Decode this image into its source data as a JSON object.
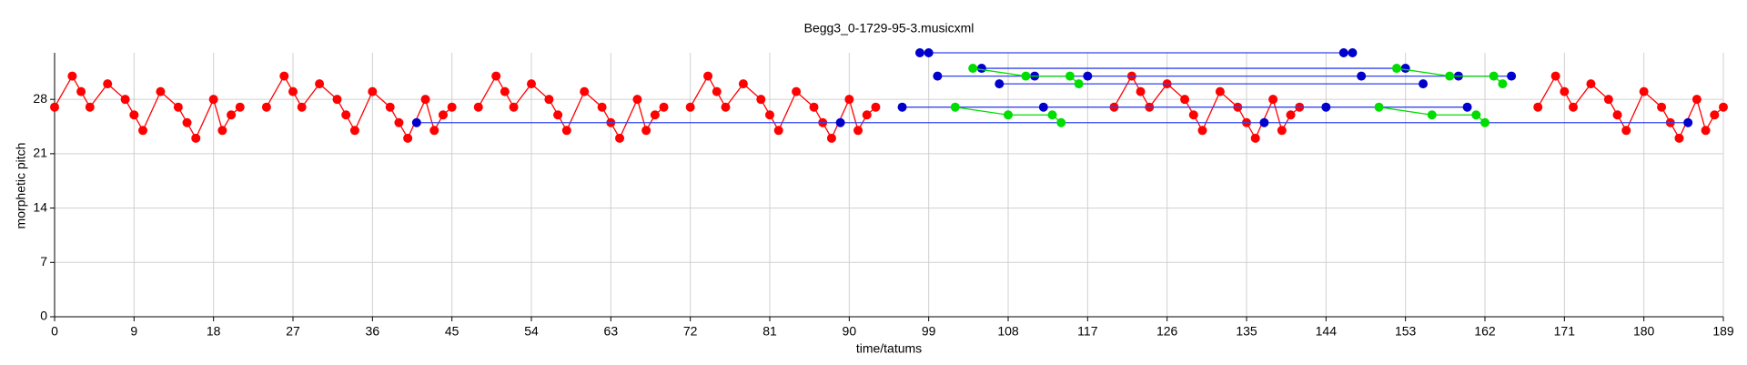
{
  "chart_data": {
    "type": "line",
    "title": "Begg3_0-1729-95-3.musicxml",
    "x_label": "time/tatums",
    "y_label": "morphetic pitch",
    "xlim": [
      0,
      189
    ],
    "ylim": [
      0,
      34
    ],
    "xticks": [
      0,
      9,
      18,
      27,
      36,
      45,
      54,
      63,
      72,
      81,
      90,
      99,
      108,
      117,
      126,
      135,
      144,
      153,
      162,
      171,
      180,
      189
    ],
    "yticks": [
      0,
      7,
      14,
      21,
      28
    ],
    "grid": true,
    "series": [
      {
        "color": "#ff0000",
        "x": [
          0,
          2,
          3,
          4,
          6,
          8,
          9,
          10,
          12,
          14,
          15,
          16,
          18,
          19,
          20,
          21,
          22,
          24,
          26,
          27,
          28,
          30,
          32,
          33,
          34,
          36,
          38,
          39,
          40,
          42,
          43,
          44,
          45,
          46,
          48,
          50,
          51,
          52,
          54,
          56,
          57,
          58,
          60,
          62,
          63,
          64,
          66,
          67,
          68,
          69,
          70,
          72,
          74,
          75,
          76,
          78,
          80,
          81,
          82,
          84,
          86,
          87,
          88,
          90,
          91,
          92,
          93,
          94,
          120,
          122,
          123,
          124,
          126,
          128,
          129,
          130,
          132,
          134,
          135,
          136,
          138,
          139,
          140,
          141,
          142,
          168,
          170,
          171,
          172,
          174,
          176,
          177,
          178,
          180,
          182,
          183,
          184,
          186,
          187,
          188,
          189
        ],
        "values": [
          27,
          31,
          29,
          27,
          30,
          28,
          26,
          24,
          29,
          27,
          25,
          23,
          28,
          24,
          26,
          27,
          null,
          27,
          31,
          29,
          27,
          30,
          28,
          26,
          24,
          29,
          27,
          25,
          23,
          28,
          24,
          26,
          27,
          null,
          27,
          31,
          29,
          27,
          30,
          28,
          26,
          24,
          29,
          27,
          25,
          23,
          28,
          24,
          26,
          27,
          null,
          27,
          31,
          29,
          27,
          30,
          28,
          26,
          24,
          29,
          27,
          25,
          23,
          28,
          24,
          26,
          27,
          null,
          27,
          31,
          29,
          27,
          30,
          28,
          26,
          24,
          29,
          27,
          25,
          23,
          28,
          24,
          26,
          27,
          null,
          27,
          31,
          29,
          27,
          30,
          28,
          26,
          24,
          29,
          27,
          25,
          23,
          28,
          24,
          26,
          27
        ]
      },
      {
        "color": "#0000cc",
        "x": [
          41,
          89,
          137,
          185
        ],
        "values": [
          25,
          25,
          25,
          25
        ]
      },
      {
        "color": "#0000cc",
        "x": [
          96,
          112,
          144,
          160
        ],
        "values": [
          27,
          27,
          27,
          27
        ]
      },
      {
        "color": "#0000cc",
        "x": [
          98,
          99,
          146,
          147
        ],
        "values": [
          34,
          34,
          34,
          34
        ]
      },
      {
        "color": "#0000cc",
        "x": [
          105,
          153
        ],
        "values": [
          32,
          32
        ]
      },
      {
        "color": "#0000cc",
        "x": [
          100,
          111,
          117,
          148,
          159,
          165
        ],
        "values": [
          31,
          31,
          31,
          31,
          31,
          31
        ]
      },
      {
        "color": "#0000cc",
        "x": [
          107,
          155
        ],
        "values": [
          30,
          30
        ]
      },
      {
        "color": "#00dd00",
        "x": [
          104,
          110,
          115,
          116
        ],
        "values": [
          32,
          31,
          31,
          30
        ]
      },
      {
        "color": "#00dd00",
        "x": [
          102,
          108,
          113,
          114
        ],
        "values": [
          27,
          26,
          26,
          25
        ]
      },
      {
        "color": "#00dd00",
        "x": [
          152,
          158,
          163,
          164
        ],
        "values": [
          32,
          31,
          31,
          30
        ]
      },
      {
        "color": "#00dd00",
        "x": [
          150,
          156,
          161,
          162
        ],
        "values": [
          27,
          26,
          26,
          25
        ]
      }
    ]
  }
}
